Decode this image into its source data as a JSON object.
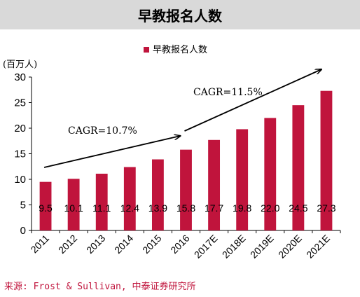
{
  "title": "早教报名人数",
  "source": "来源: Frost & Sullivan, 中泰证券研究所",
  "chart_data": {
    "type": "bar",
    "title": "早教报名人数",
    "ylabel": "(百万人)",
    "legend": "早教报名人数",
    "legend_placement": "top-center",
    "categories": [
      "2011",
      "2012",
      "2013",
      "2014",
      "2015",
      "2016",
      "2017E",
      "2018E",
      "2019E",
      "2020E",
      "2021E"
    ],
    "values": [
      9.5,
      10.1,
      11.1,
      12.4,
      13.9,
      15.8,
      17.7,
      19.8,
      22.0,
      24.5,
      27.3
    ],
    "data_labels": [
      "9.5",
      "10.1",
      "11.1",
      "12.4",
      "13.9",
      "15.8",
      "17.7",
      "19.8",
      "22.0",
      "24.5",
      "27.3"
    ],
    "ylim": [
      0,
      30
    ],
    "yticks": [
      0,
      5,
      10,
      15,
      20,
      25,
      30
    ],
    "grid": false,
    "bar_color": "#c0143c",
    "annotations": [
      {
        "text": "CAGR=10.7%",
        "from": "2011",
        "to": "2016"
      },
      {
        "text": "CAGR=11.5%",
        "from": "2016",
        "to": "2021E"
      }
    ]
  }
}
